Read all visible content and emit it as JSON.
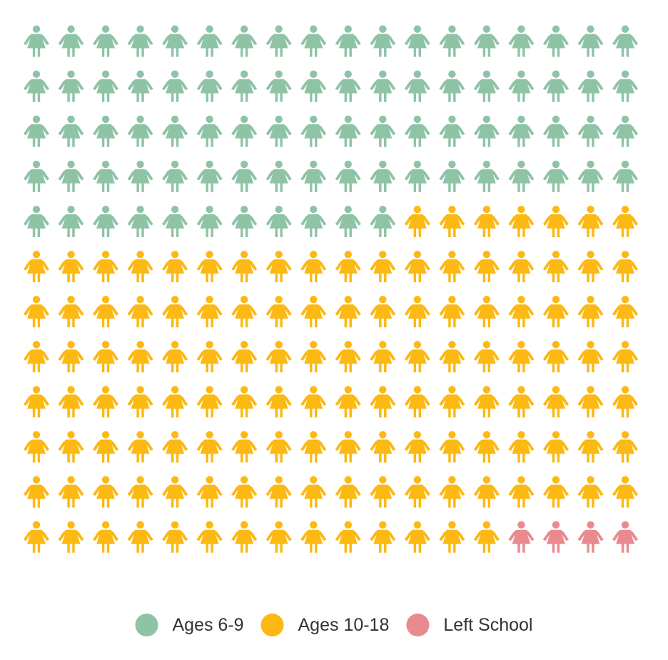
{
  "chart_data": {
    "type": "waffle",
    "columns": 18,
    "rows": 12,
    "total": 216,
    "series": [
      {
        "name": "Ages 6-9",
        "count": 83,
        "color": "#8fc3a6"
      },
      {
        "name": "Ages 10-18",
        "count": 129,
        "color": "#fcb813"
      },
      {
        "name": "Left School",
        "count": 4,
        "color": "#e98b8e"
      }
    ],
    "icon": "girl-icon",
    "fill_order": "row-major",
    "legend_position": "bottom-center"
  }
}
